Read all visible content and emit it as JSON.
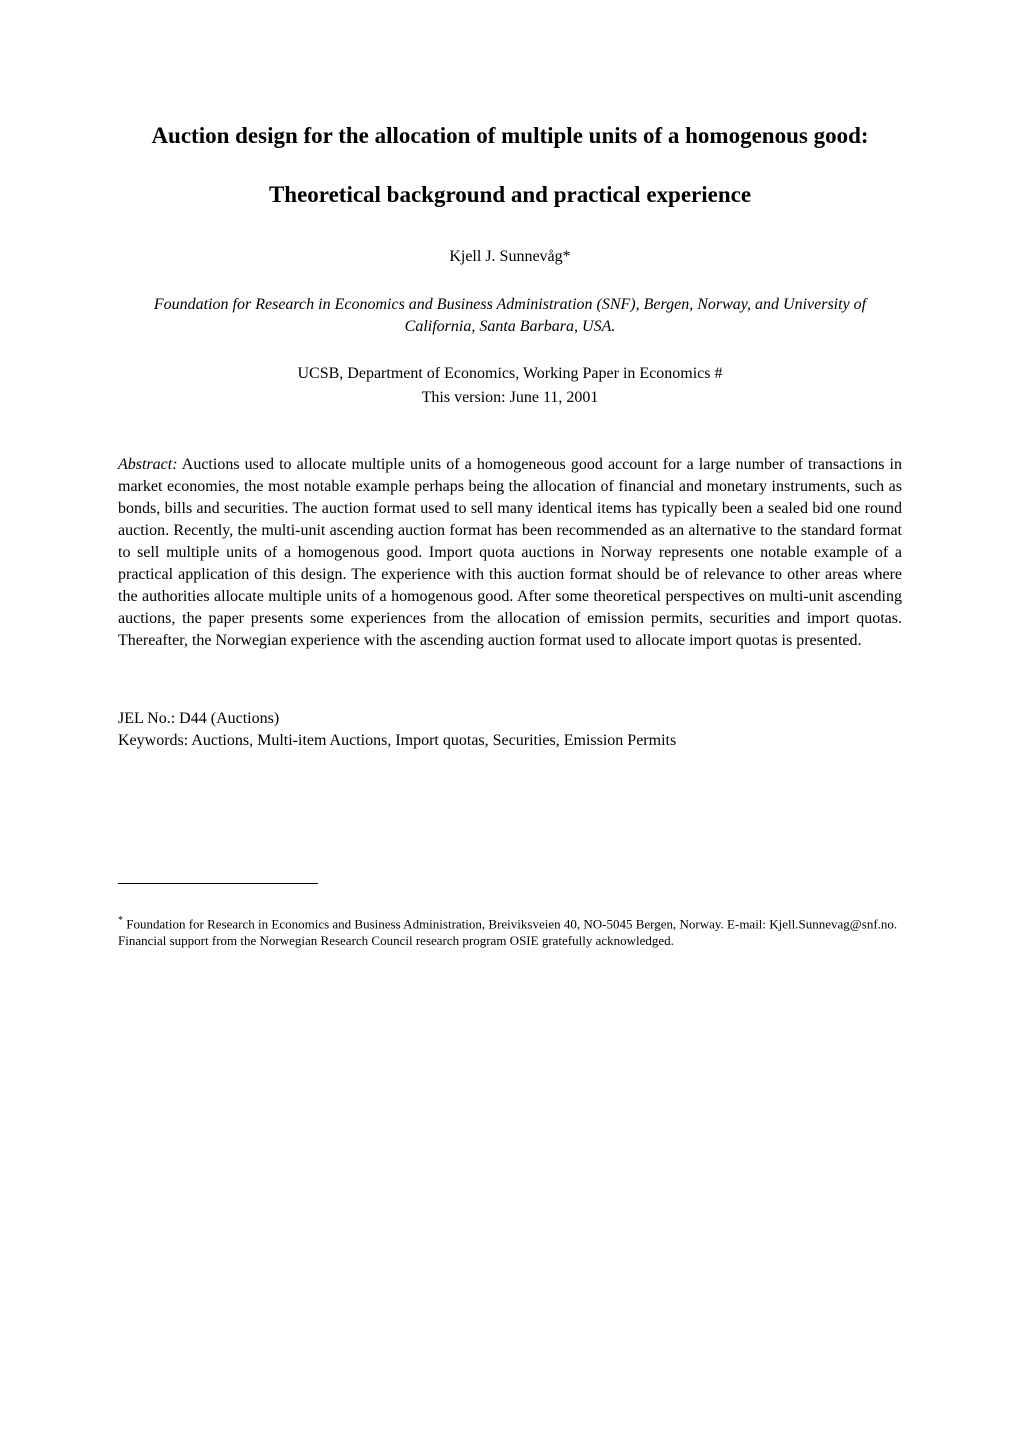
{
  "title": "Auction design for the allocation of multiple units of a homogenous good:",
  "subtitle": "Theoretical background and practical experience",
  "author": "Kjell J. Sunnevåg*",
  "affiliation": "Foundation for Research in Economics and Business Administration (SNF), Bergen, Norway, and University of California, Santa Barbara, USA.",
  "workingPaper": "UCSB, Department of Economics, Working Paper in Economics #",
  "version": "This version: June 11, 2001",
  "abstractLabel": "Abstract:",
  "abstractText": " Auctions used to allocate multiple units of a homogeneous good account for a large number of transactions in market economies, the most notable example perhaps being the allocation of financial and monetary instruments, such as bonds, bills and securities. The auction format used to sell many identical items has typically been a sealed bid one round auction. Recently, the multi-unit ascending auction format has been recommended as an alternative to the standard format to sell multiple units of a homogenous good. Import quota auctions in Norway represents one notable example of a practical application of this design. The experience with this auction format should be of relevance to other areas where the authorities allocate multiple units of a homogenous good. After some theoretical perspectives on multi-unit ascending auctions, the paper presents some experiences from the allocation of emission permits, securities and import quotas. Thereafter, the Norwegian experience with the ascending auction format used to allocate import quotas is presented.",
  "jel": "JEL No.: D44 (Auctions)",
  "keywords": "Keywords: Auctions, Multi-item Auctions, Import quotas, Securities, Emission Permits",
  "footnoteMarker": "*",
  "footnoteText": " Foundation for Research in Economics and Business Administration, Breiviksveien 40, NO-5045 Bergen, Norway.  E-mail: Kjell.Sunnevag@snf.no. Financial support from the Norwegian Research Council research program OSIE gratefully acknowledged."
}
